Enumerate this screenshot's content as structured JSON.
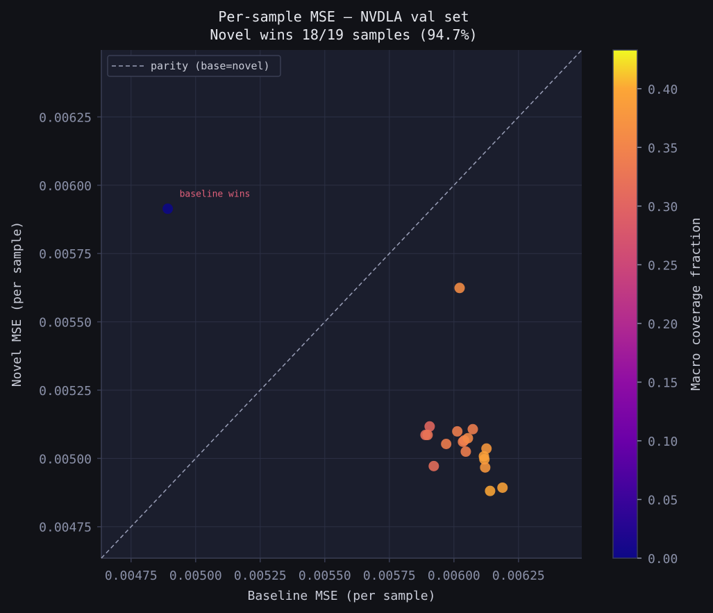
{
  "figure": {
    "title_line1": "Per-sample MSE — NVDLA val set",
    "title_line2": "Novel wins 18/19 samples (94.7%)",
    "background": "#111217",
    "plot_background": "#1b1e2d",
    "grid_color": "#2c3045",
    "spine_color": "#3a3e55"
  },
  "legend": {
    "label": "parity (base=novel)",
    "position": "upper left"
  },
  "annotation": {
    "text": "baseline wins",
    "color": "#e0607a"
  },
  "colorbar": {
    "label": "Macro coverage fraction",
    "ticks": [
      "0.00",
      "0.05",
      "0.10",
      "0.15",
      "0.20",
      "0.25",
      "0.30",
      "0.35",
      "0.40"
    ],
    "range": [
      0.0,
      0.433
    ],
    "colormap": "plasma"
  },
  "chart_data": {
    "type": "scatter",
    "title": "Per-sample MSE — NVDLA val set\nNovel wins 18/19 samples (94.7%)",
    "xlabel": "Baseline MSE (per sample)",
    "ylabel": "Novel MSE (per sample)",
    "xlim": [
      0.004635,
      0.006495
    ],
    "ylim": [
      0.004635,
      0.006495
    ],
    "xticks": [
      "0.00475",
      "0.00500",
      "0.00525",
      "0.00550",
      "0.00575",
      "0.00600",
      "0.00625"
    ],
    "yticks": [
      "0.00475",
      "0.00500",
      "0.00525",
      "0.00550",
      "0.00575",
      "0.00600",
      "0.00625"
    ],
    "grid": true,
    "legend": [
      "parity (base=novel)"
    ],
    "reference_line": {
      "type": "y=x",
      "label": "parity (base=novel)",
      "style": "dashed"
    },
    "color_variable": "Macro coverage fraction",
    "points": [
      {
        "x": 0.004892,
        "y": 0.005914,
        "c": 0.0,
        "note": "baseline wins"
      },
      {
        "x": 0.006022,
        "y": 0.005624,
        "c": 0.39
      },
      {
        "x": 0.005906,
        "y": 0.005117,
        "c": 0.33
      },
      {
        "x": 0.00589,
        "y": 0.005086,
        "c": 0.34
      },
      {
        "x": 0.005898,
        "y": 0.005086,
        "c": 0.35
      },
      {
        "x": 0.00597,
        "y": 0.005053,
        "c": 0.37
      },
      {
        "x": 0.006013,
        "y": 0.005099,
        "c": 0.37
      },
      {
        "x": 0.006073,
        "y": 0.005107,
        "c": 0.37
      },
      {
        "x": 0.006035,
        "y": 0.005061,
        "c": 0.37
      },
      {
        "x": 0.00604,
        "y": 0.005066,
        "c": 0.37
      },
      {
        "x": 0.006054,
        "y": 0.005074,
        "c": 0.385
      },
      {
        "x": 0.006046,
        "y": 0.005025,
        "c": 0.37
      },
      {
        "x": 0.005922,
        "y": 0.004972,
        "c": 0.34
      },
      {
        "x": 0.006126,
        "y": 0.005036,
        "c": 0.41
      },
      {
        "x": 0.006116,
        "y": 0.005008,
        "c": 0.42
      },
      {
        "x": 0.006118,
        "y": 0.004997,
        "c": 0.42
      },
      {
        "x": 0.006121,
        "y": 0.004967,
        "c": 0.41
      },
      {
        "x": 0.00614,
        "y": 0.004881,
        "c": 0.43
      },
      {
        "x": 0.006188,
        "y": 0.004893,
        "c": 0.425
      }
    ]
  }
}
